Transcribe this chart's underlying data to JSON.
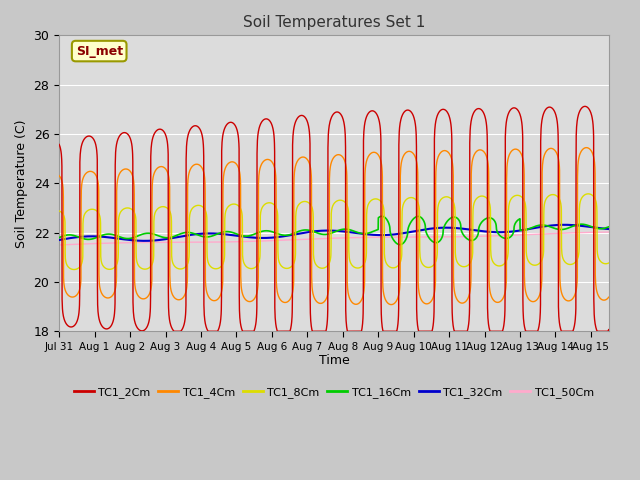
{
  "title": "Soil Temperatures Set 1",
  "xlabel": "Time",
  "ylabel": "Soil Temperature (C)",
  "ylim": [
    18,
    30
  ],
  "xlim_start": 0,
  "xlim_end": 15.5,
  "annotation": "SI_met",
  "fig_bg_color": "#c8c8c8",
  "plot_bg_color": "#dcdcdc",
  "grid_color": "#ffffff",
  "series_colors": {
    "TC1_2Cm": "#cc0000",
    "TC1_4Cm": "#ff8800",
    "TC1_8Cm": "#dddd00",
    "TC1_16Cm": "#00cc00",
    "TC1_32Cm": "#0000cc",
    "TC1_50Cm": "#ffaacc"
  },
  "tick_labels": [
    "Jul 31",
    "Aug 1",
    "Aug 2",
    "Aug 3",
    "Aug 4",
    "Aug 5",
    "Aug 6",
    "Aug 7",
    "Aug 8",
    "Aug 9",
    "Aug 10",
    "Aug 11",
    "Aug 12",
    "Aug 13",
    "Aug 14",
    "Aug 15"
  ],
  "tick_positions": [
    0,
    1,
    2,
    3,
    4,
    5,
    6,
    7,
    8,
    9,
    10,
    11,
    12,
    13,
    14,
    15
  ],
  "yticks": [
    18,
    20,
    22,
    24,
    26,
    28,
    30
  ]
}
